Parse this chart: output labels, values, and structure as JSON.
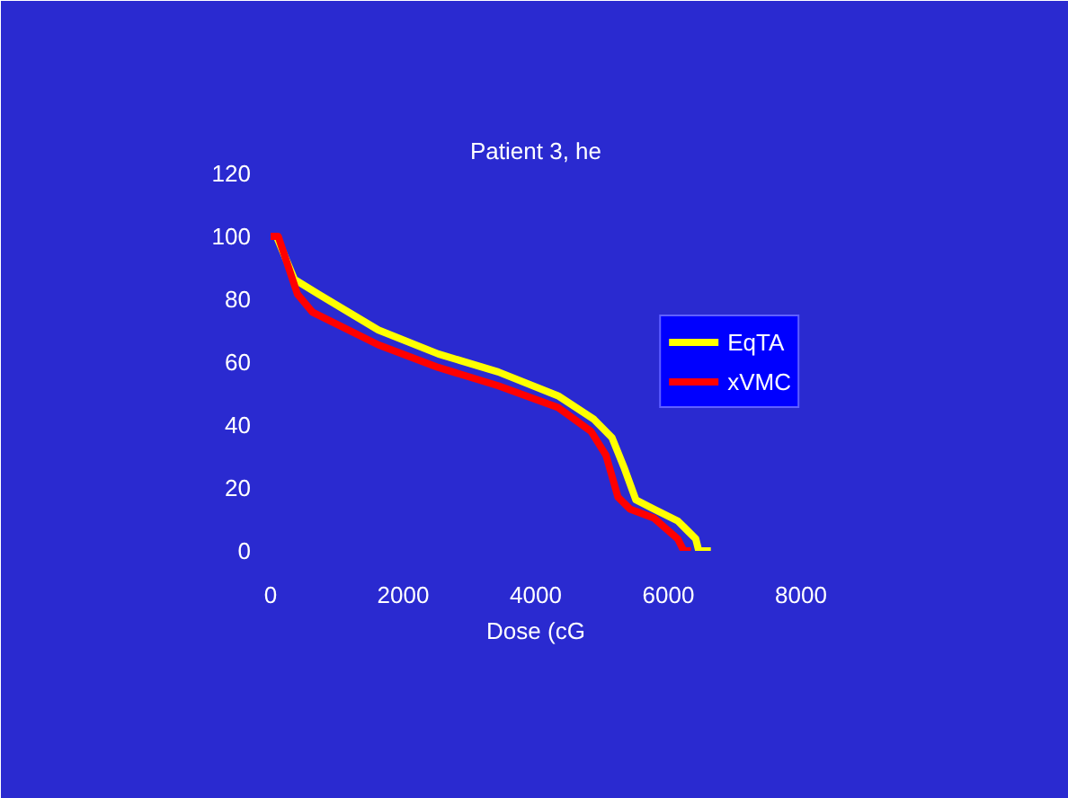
{
  "chart_data": {
    "type": "line",
    "title": "Patient 3, he",
    "xlabel": "Dose (cG",
    "xlim": [
      0,
      8000
    ],
    "xticks": [
      0,
      2000,
      4000,
      6000,
      8000
    ],
    "ylim": [
      0,
      120
    ],
    "yticks": [
      0,
      20,
      40,
      60,
      80,
      100,
      120
    ],
    "grid": false,
    "legend": "right",
    "marker": "none",
    "line_style": "solid",
    "series": [
      {
        "name": "EqTA",
        "color": "#ffff00",
        "x": [
          0,
          90,
          360,
          723,
          1626,
          2530,
          3433,
          4336,
          4878,
          5149,
          5330,
          5510,
          5781,
          6142,
          6413,
          6458,
          6640
        ],
        "values": [
          100,
          100,
          86.3,
          81.6,
          70.2,
          62.6,
          56.9,
          49.3,
          41.8,
          36,
          26.6,
          16.2,
          13.3,
          9.5,
          3.8,
          0,
          0
        ]
      },
      {
        "name": "xVMC",
        "color": "#ff0000",
        "x": [
          0,
          115,
          406,
          632,
          1626,
          2530,
          3433,
          4336,
          4833,
          5059,
          5239,
          5420,
          5781,
          6142,
          6232,
          6340
        ],
        "values": [
          100,
          100,
          81.6,
          75.9,
          65.5,
          58.3,
          52.5,
          45.6,
          38,
          30.4,
          17.1,
          13.3,
          10.4,
          3.8,
          0,
          0
        ]
      }
    ]
  }
}
